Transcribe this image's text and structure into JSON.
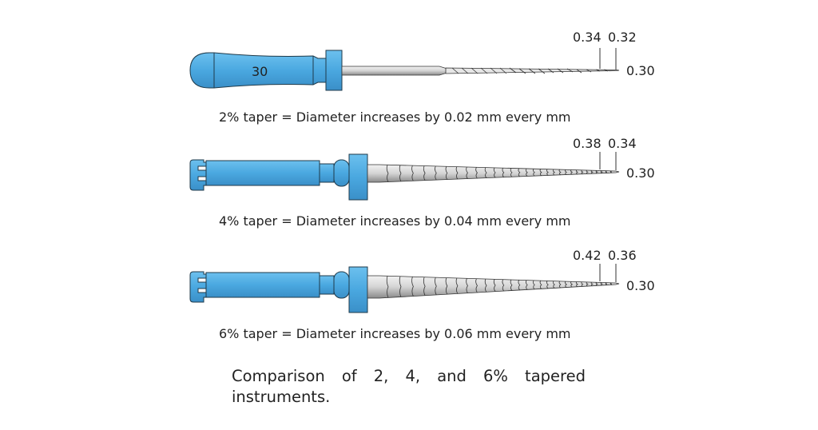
{
  "colors": {
    "handle_blue": "#4aa8e0",
    "outline": "#1f3a4a",
    "metal": "#c8c8c8"
  },
  "instruments": [
    {
      "handle_label": "30",
      "d2_label": "0.34",
      "d1_label": "0.32",
      "d0_label": "0.30",
      "caption": "2% taper = Diameter increases by 0.02 mm every mm"
    },
    {
      "d2_label": "0.38",
      "d1_label": "0.34",
      "d0_label": "0.30",
      "caption": "4% taper = Diameter increases by 0.04 mm every mm"
    },
    {
      "d2_label": "0.42",
      "d1_label": "0.36",
      "d0_label": "0.30",
      "caption": "6% taper = Diameter increases by 0.06 mm every mm"
    }
  ],
  "figure_caption": {
    "line1": "Comparison of 2, 4, and 6% tapered",
    "line2": "instruments."
  }
}
